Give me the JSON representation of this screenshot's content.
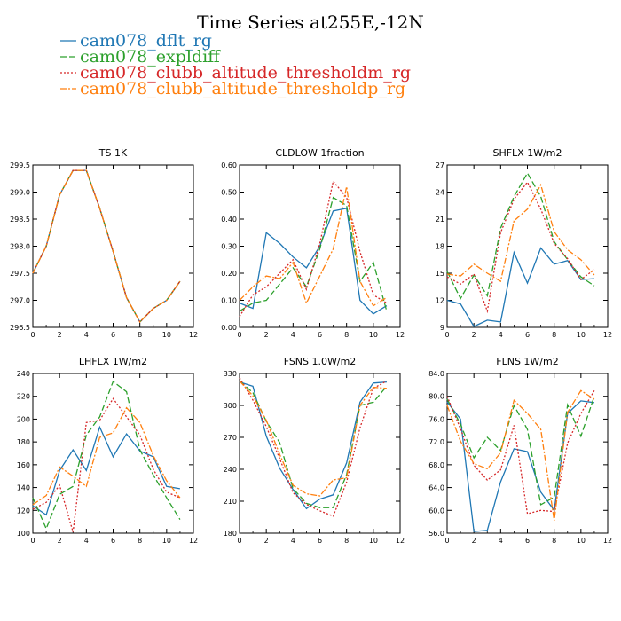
{
  "title": "Time Series at255E,-12N",
  "legend": [
    {
      "name": "cam078_dflt_rg",
      "color": "#1f77b4",
      "dash": "solid"
    },
    {
      "name": "cam078_expldiff",
      "color": "#2ca02c",
      "dash": "longdash"
    },
    {
      "name": "cam078_clubb_altitude_thresholdm_rg",
      "color": "#d62728",
      "dash": "dot"
    },
    {
      "name": "cam078_clubb_altitude_thresholdp_rg",
      "color": "#ff7f0e",
      "dash": "dashdot"
    }
  ],
  "chart_data": [
    {
      "type": "line",
      "title": "TS   1K",
      "x": [
        0,
        1,
        2,
        3,
        4,
        5,
        6,
        7,
        8,
        9,
        10,
        11
      ],
      "xlim": [
        0,
        12
      ],
      "xticks": [
        "0",
        "2",
        "4",
        "6",
        "8",
        "10",
        "12"
      ],
      "ylim": [
        296.5,
        299.5
      ],
      "yticks": [
        "296.5",
        "297.0",
        "297.5",
        "298.0",
        "298.5",
        "299.0",
        "299.5"
      ],
      "series": [
        {
          "name": "cam078_dflt_rg",
          "values": [
            297.5,
            298.0,
            298.95,
            299.4,
            299.4,
            298.7,
            297.9,
            297.05,
            296.6,
            296.85,
            297.0,
            297.35
          ]
        },
        {
          "name": "cam078_expldiff",
          "values": [
            297.5,
            298.0,
            298.95,
            299.4,
            299.4,
            298.7,
            297.9,
            297.05,
            296.6,
            296.85,
            297.0,
            297.35
          ]
        },
        {
          "name": "cam078_clubb_altitude_thresholdm_rg",
          "values": [
            297.5,
            298.0,
            298.95,
            299.4,
            299.4,
            298.7,
            297.9,
            297.05,
            296.6,
            296.85,
            297.0,
            297.35
          ]
        },
        {
          "name": "cam078_clubb_altitude_thresholdp_rg",
          "values": [
            297.5,
            298.0,
            298.95,
            299.4,
            299.4,
            298.7,
            297.9,
            297.05,
            296.6,
            296.85,
            297.0,
            297.35
          ]
        }
      ]
    },
    {
      "type": "line",
      "title": "CLDLOW   1fraction",
      "x": [
        0,
        1,
        2,
        3,
        4,
        5,
        6,
        7,
        8,
        9,
        10,
        11
      ],
      "xlim": [
        0,
        12
      ],
      "xticks": [
        "0",
        "2",
        "4",
        "6",
        "8",
        "10",
        "12"
      ],
      "ylim": [
        0.0,
        0.6
      ],
      "yticks": [
        "0.00",
        "0.10",
        "0.20",
        "0.30",
        "0.40",
        "0.50",
        "0.60"
      ],
      "series": [
        {
          "name": "cam078_dflt_rg",
          "values": [
            0.09,
            0.07,
            0.35,
            0.31,
            0.26,
            0.22,
            0.3,
            0.43,
            0.44,
            0.1,
            0.05,
            0.08
          ]
        },
        {
          "name": "cam078_expldiff",
          "values": [
            0.06,
            0.09,
            0.1,
            0.16,
            0.22,
            0.15,
            0.29,
            0.48,
            0.45,
            0.17,
            0.24,
            0.06
          ]
        },
        {
          "name": "cam078_clubb_altitude_thresholdm_rg",
          "values": [
            0.04,
            0.12,
            0.15,
            0.2,
            0.25,
            0.14,
            0.31,
            0.54,
            0.48,
            0.28,
            0.12,
            0.09
          ]
        },
        {
          "name": "cam078_clubb_altitude_thresholdp_rg",
          "values": [
            0.1,
            0.15,
            0.19,
            0.18,
            0.24,
            0.09,
            0.19,
            0.29,
            0.52,
            0.17,
            0.08,
            0.11
          ]
        }
      ]
    },
    {
      "type": "line",
      "title": "SHFLX   1W/m2",
      "x": [
        0,
        1,
        2,
        3,
        4,
        5,
        6,
        7,
        8,
        9,
        10,
        11
      ],
      "xlim": [
        0,
        12
      ],
      "xticks": [
        "0",
        "2",
        "4",
        "6",
        "8",
        "10",
        "12"
      ],
      "ylim": [
        9,
        27
      ],
      "yticks": [
        "9",
        "12",
        "15",
        "18",
        "21",
        "24",
        "27"
      ],
      "series": [
        {
          "name": "cam078_dflt_rg",
          "values": [
            12.0,
            11.6,
            9.1,
            9.8,
            9.6,
            17.3,
            13.9,
            17.8,
            16.0,
            16.4,
            14.3,
            14.4
          ]
        },
        {
          "name": "cam078_expldiff",
          "values": [
            15.2,
            12.2,
            14.8,
            12.5,
            20.0,
            23.5,
            26.1,
            23.5,
            18.5,
            16.5,
            14.6,
            13.6
          ]
        },
        {
          "name": "cam078_clubb_altitude_thresholdm_rg",
          "values": [
            14.6,
            13.8,
            14.9,
            10.8,
            19.5,
            23.2,
            25.1,
            22.1,
            18.3,
            16.6,
            14.3,
            15.4
          ]
        },
        {
          "name": "cam078_clubb_altitude_thresholdp_rg",
          "values": [
            14.9,
            14.7,
            16.0,
            15.0,
            14.1,
            20.8,
            22.1,
            24.8,
            19.6,
            17.6,
            16.5,
            14.8
          ]
        }
      ]
    },
    {
      "type": "line",
      "title": "LHFLX   1W/m2",
      "x": [
        0,
        1,
        2,
        3,
        4,
        5,
        6,
        7,
        8,
        9,
        10,
        11
      ],
      "xlim": [
        0,
        12
      ],
      "xticks": [
        "0",
        "2",
        "4",
        "6",
        "8",
        "10",
        "12"
      ],
      "ylim": [
        100,
        240
      ],
      "yticks": [
        "100",
        "120",
        "140",
        "160",
        "180",
        "200",
        "220",
        "240"
      ],
      "series": [
        {
          "name": "cam078_dflt_rg",
          "values": [
            124,
            116,
            155,
            173,
            155,
            193,
            167,
            187,
            172,
            167,
            141,
            139
          ]
        },
        {
          "name": "cam078_expldiff",
          "values": [
            131,
            104,
            134,
            141,
            186,
            202,
            233,
            224,
            173,
            151,
            131,
            112
          ]
        },
        {
          "name": "cam078_clubb_altitude_thresholdm_rg",
          "values": [
            121,
            127,
            142,
            101,
            197,
            199,
            218,
            202,
            186,
            156,
            136,
            131
          ]
        },
        {
          "name": "cam078_clubb_altitude_thresholdp_rg",
          "values": [
            125,
            133,
            158,
            150,
            141,
            184,
            188,
            210,
            197,
            168,
            146,
            131
          ]
        }
      ]
    },
    {
      "type": "line",
      "title": "FSNS   1.0W/m2",
      "x": [
        0,
        1,
        2,
        3,
        4,
        5,
        6,
        7,
        8,
        9,
        10,
        11
      ],
      "xlim": [
        0,
        12
      ],
      "xticks": [
        "0",
        "2",
        "4",
        "6",
        "8",
        "10",
        "12"
      ],
      "ylim": [
        180,
        330
      ],
      "yticks": [
        "180",
        "210",
        "240",
        "270",
        "300",
        "330"
      ],
      "series": [
        {
          "name": "cam078_dflt_rg",
          "values": [
            322,
            318,
            271,
            241,
            221,
            203,
            212,
            216,
            246,
            303,
            321,
            322
          ]
        },
        {
          "name": "cam078_expldiff",
          "values": [
            323,
            312,
            285,
            265,
            222,
            208,
            204,
            204,
            235,
            300,
            303,
            318
          ]
        },
        {
          "name": "cam078_clubb_altitude_thresholdm_rg",
          "values": [
            326,
            305,
            280,
            250,
            218,
            207,
            201,
            196,
            228,
            279,
            316,
            323
          ]
        },
        {
          "name": "cam078_clubb_altitude_thresholdp_rg",
          "values": [
            323,
            309,
            286,
            254,
            225,
            217,
            215,
            230,
            232,
            300,
            317,
            316
          ]
        }
      ]
    },
    {
      "type": "line",
      "title": "FLNS   1W/m2",
      "x": [
        0,
        1,
        2,
        3,
        4,
        5,
        6,
        7,
        8,
        9,
        10,
        11
      ],
      "xlim": [
        0,
        12
      ],
      "xticks": [
        "0",
        "2",
        "4",
        "6",
        "8",
        "10",
        "12"
      ],
      "ylim": [
        56,
        84
      ],
      "yticks": [
        "56.0",
        "60.0",
        "64.0",
        "68.0",
        "72.0",
        "76.0",
        "80.0",
        "84.0"
      ],
      "series": [
        {
          "name": "cam078_dflt_rg",
          "values": [
            79.0,
            76.0,
            56.3,
            56.5,
            65.0,
            70.8,
            70.3,
            63.2,
            60.0,
            77.0,
            79.2,
            78.9
          ]
        },
        {
          "name": "cam078_expldiff",
          "values": [
            79.5,
            75.1,
            69.2,
            72.8,
            70.5,
            78.4,
            74.2,
            61.0,
            62.3,
            78.5,
            73.0,
            80.0
          ]
        },
        {
          "name": "cam078_clubb_altitude_thresholdm_rg",
          "values": [
            80.0,
            74.3,
            67.9,
            65.3,
            67.1,
            74.9,
            59.4,
            60.0,
            59.8,
            71.8,
            77.0,
            81.0
          ]
        },
        {
          "name": "cam078_clubb_altitude_thresholdp_rg",
          "values": [
            78.4,
            72.1,
            68.2,
            67.3,
            70.1,
            79.3,
            77.0,
            74.2,
            58.2,
            77.2,
            81.0,
            79.5
          ]
        }
      ]
    }
  ]
}
